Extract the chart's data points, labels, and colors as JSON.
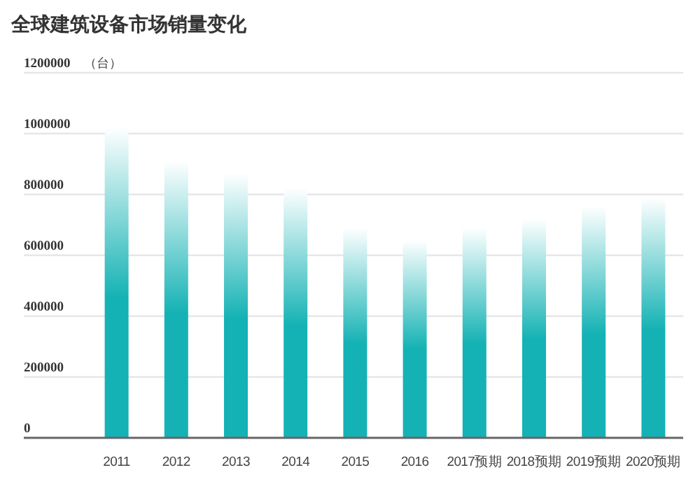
{
  "chart_data": {
    "type": "bar",
    "title": "全球建筑设备市场销量变化",
    "ylabel": "（台）",
    "categories": [
      "2011",
      "2012",
      "2013",
      "2014",
      "2015",
      "2016",
      "2017预期",
      "2018预期",
      "2019预期",
      "2020预期"
    ],
    "values": [
      1020000,
      910000,
      870000,
      820000,
      690000,
      650000,
      690000,
      720000,
      760000,
      790000
    ],
    "color": "#14b2b4",
    "ylim": [
      0,
      1200000
    ],
    "yticks": [
      0,
      200000,
      400000,
      600000,
      800000,
      1000000,
      1200000
    ],
    "grid": "y"
  }
}
